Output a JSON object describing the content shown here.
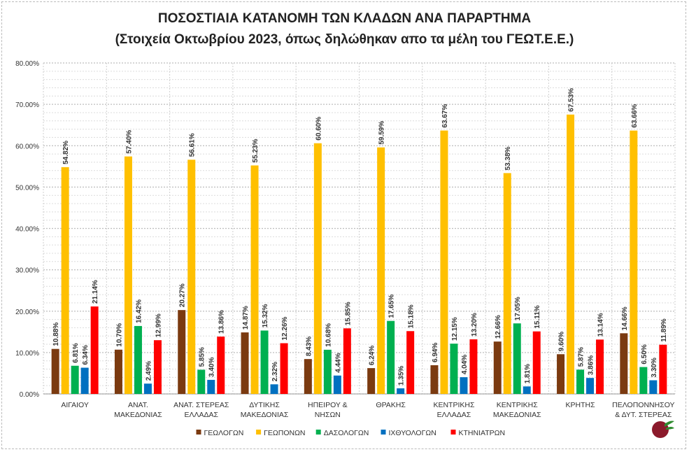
{
  "chart_data": {
    "type": "bar",
    "title": "ΠΟΣΟΣΤΙΑΙΑ ΚΑΤΑΝΟΜΗ ΤΩΝ ΚΛΑΔΩΝ ΑΝΑ ΠΑΡΑΡΤΗΜΑ",
    "subtitle": "(Στοιχεία Οκτωβρίου 2023, όπως δηλώθηκαν απο τα μέλη του ΓΕΩΤ.Ε.Ε.)",
    "categories": [
      [
        "ΑΙΓΑΙΟΥ"
      ],
      [
        "ΑΝΑΤ.",
        "ΜΑΚΕΔΟΝΙΑΣ"
      ],
      [
        "ΑΝΑΤ. ΣΤΕΡΕΑΣ",
        "ΕΛΛΑΔΑΣ"
      ],
      [
        "ΔΥΤΙΚΗΣ",
        "ΜΑΚΕΔΟΝΙΑΣ"
      ],
      [
        "ΗΠΕΙΡΟΥ &",
        "ΝΗΣΩΝ"
      ],
      [
        "ΘΡΑΚΗΣ"
      ],
      [
        "ΚΕΝΤΡΙΚΗΣ",
        "ΕΛΛΑΔΑΣ"
      ],
      [
        "ΚΕΝΤΡΙΚΗΣ",
        "ΜΑΚΕΔΟΝΙΑΣ"
      ],
      [
        "ΚΡΗΤΗΣ"
      ],
      [
        "ΠΕΛΟΠΟΝΝΗΣΟΥ",
        "& ΔΥΤ. ΣΤΕΡΕΑΣ"
      ]
    ],
    "series": [
      {
        "name": "ΓΕΩΛΟΓΩΝ",
        "color": "#7b3a10",
        "values": [
          10.88,
          10.7,
          20.27,
          14.87,
          8.43,
          6.24,
          6.94,
          12.66,
          9.6,
          14.66
        ]
      },
      {
        "name": "ΓΕΩΠΟΝΩΝ",
        "color": "#ffc000",
        "values": [
          54.82,
          57.4,
          56.61,
          55.23,
          60.6,
          59.59,
          63.67,
          53.38,
          67.53,
          63.66
        ]
      },
      {
        "name": "ΔΑΣΟΛΟΓΩΝ",
        "color": "#00b050",
        "values": [
          6.81,
          16.42,
          5.85,
          15.32,
          10.68,
          17.65,
          12.15,
          17.05,
          5.87,
          6.5
        ]
      },
      {
        "name": "ΙΧΘΥΟΛΟΓΩΝ",
        "color": "#0070c0",
        "values": [
          6.34,
          2.49,
          3.4,
          2.32,
          4.44,
          1.35,
          4.04,
          1.81,
          3.86,
          3.3
        ]
      },
      {
        "name": "ΚΤΗΝΙΑΤΡΩΝ",
        "color": "#ff0000",
        "values": [
          21.14,
          12.99,
          13.86,
          12.26,
          15.85,
          15.18,
          13.2,
          15.11,
          13.14,
          11.89
        ]
      }
    ],
    "ylim": [
      0,
      80
    ],
    "yticks": [
      "0.00%",
      "10.00%",
      "20.00%",
      "30.00%",
      "40.00%",
      "50.00%",
      "60.00%",
      "70.00%",
      "80.00%"
    ],
    "grid": true,
    "legend": "bottom",
    "xlabel": "",
    "ylabel": ""
  }
}
